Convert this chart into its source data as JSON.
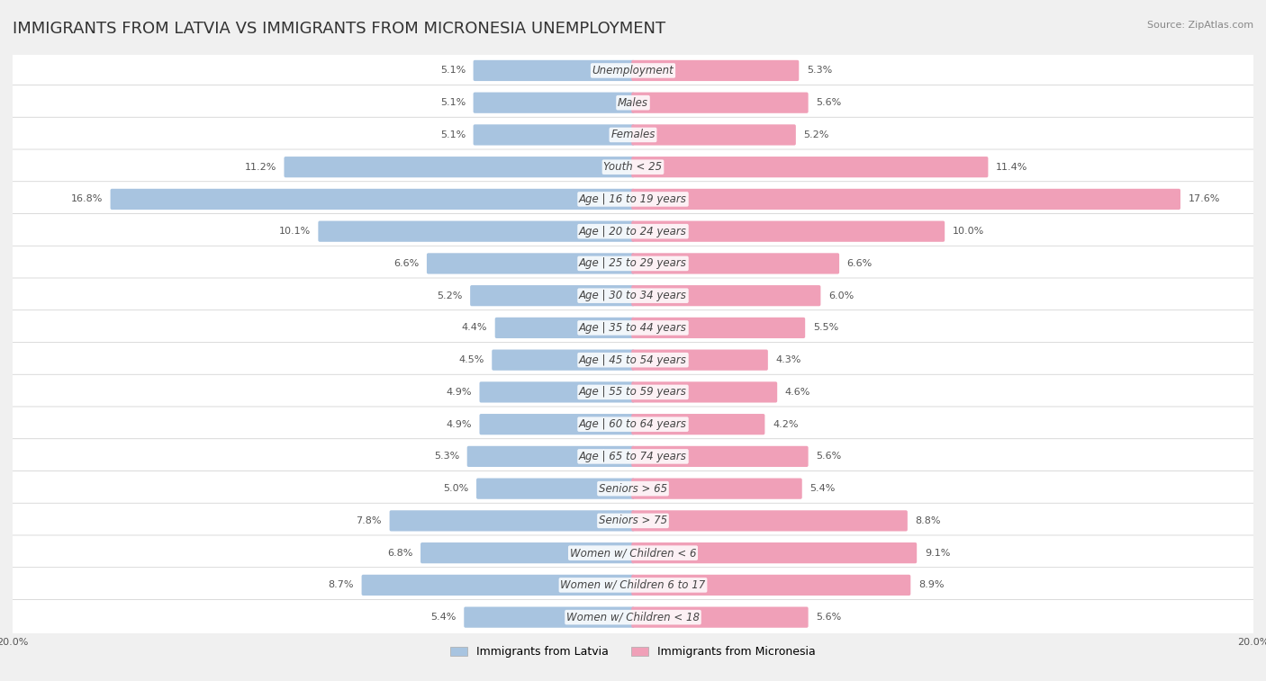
{
  "title": "IMMIGRANTS FROM LATVIA VS IMMIGRANTS FROM MICRONESIA UNEMPLOYMENT",
  "source": "Source: ZipAtlas.com",
  "categories": [
    "Unemployment",
    "Males",
    "Females",
    "Youth < 25",
    "Age | 16 to 19 years",
    "Age | 20 to 24 years",
    "Age | 25 to 29 years",
    "Age | 30 to 34 years",
    "Age | 35 to 44 years",
    "Age | 45 to 54 years",
    "Age | 55 to 59 years",
    "Age | 60 to 64 years",
    "Age | 65 to 74 years",
    "Seniors > 65",
    "Seniors > 75",
    "Women w/ Children < 6",
    "Women w/ Children 6 to 17",
    "Women w/ Children < 18"
  ],
  "latvia_values": [
    5.1,
    5.1,
    5.1,
    11.2,
    16.8,
    10.1,
    6.6,
    5.2,
    4.4,
    4.5,
    4.9,
    4.9,
    5.3,
    5.0,
    7.8,
    6.8,
    8.7,
    5.4
  ],
  "micronesia_values": [
    5.3,
    5.6,
    5.2,
    11.4,
    17.6,
    10.0,
    6.6,
    6.0,
    5.5,
    4.3,
    4.6,
    4.2,
    5.6,
    5.4,
    8.8,
    9.1,
    8.9,
    5.6
  ],
  "latvia_color": "#a8c4e0",
  "micronesia_color": "#f0a0b8",
  "latvia_dark_color": "#7bafd4",
  "micronesia_dark_color": "#e87fa0",
  "bg_color": "#f0f0f0",
  "row_bg_color": "#ffffff",
  "row_alt_bg": "#f5f5f5",
  "max_value": 20.0,
  "bar_height": 0.55,
  "title_fontsize": 13,
  "label_fontsize": 8.5,
  "value_fontsize": 8.0,
  "legend_fontsize": 9
}
